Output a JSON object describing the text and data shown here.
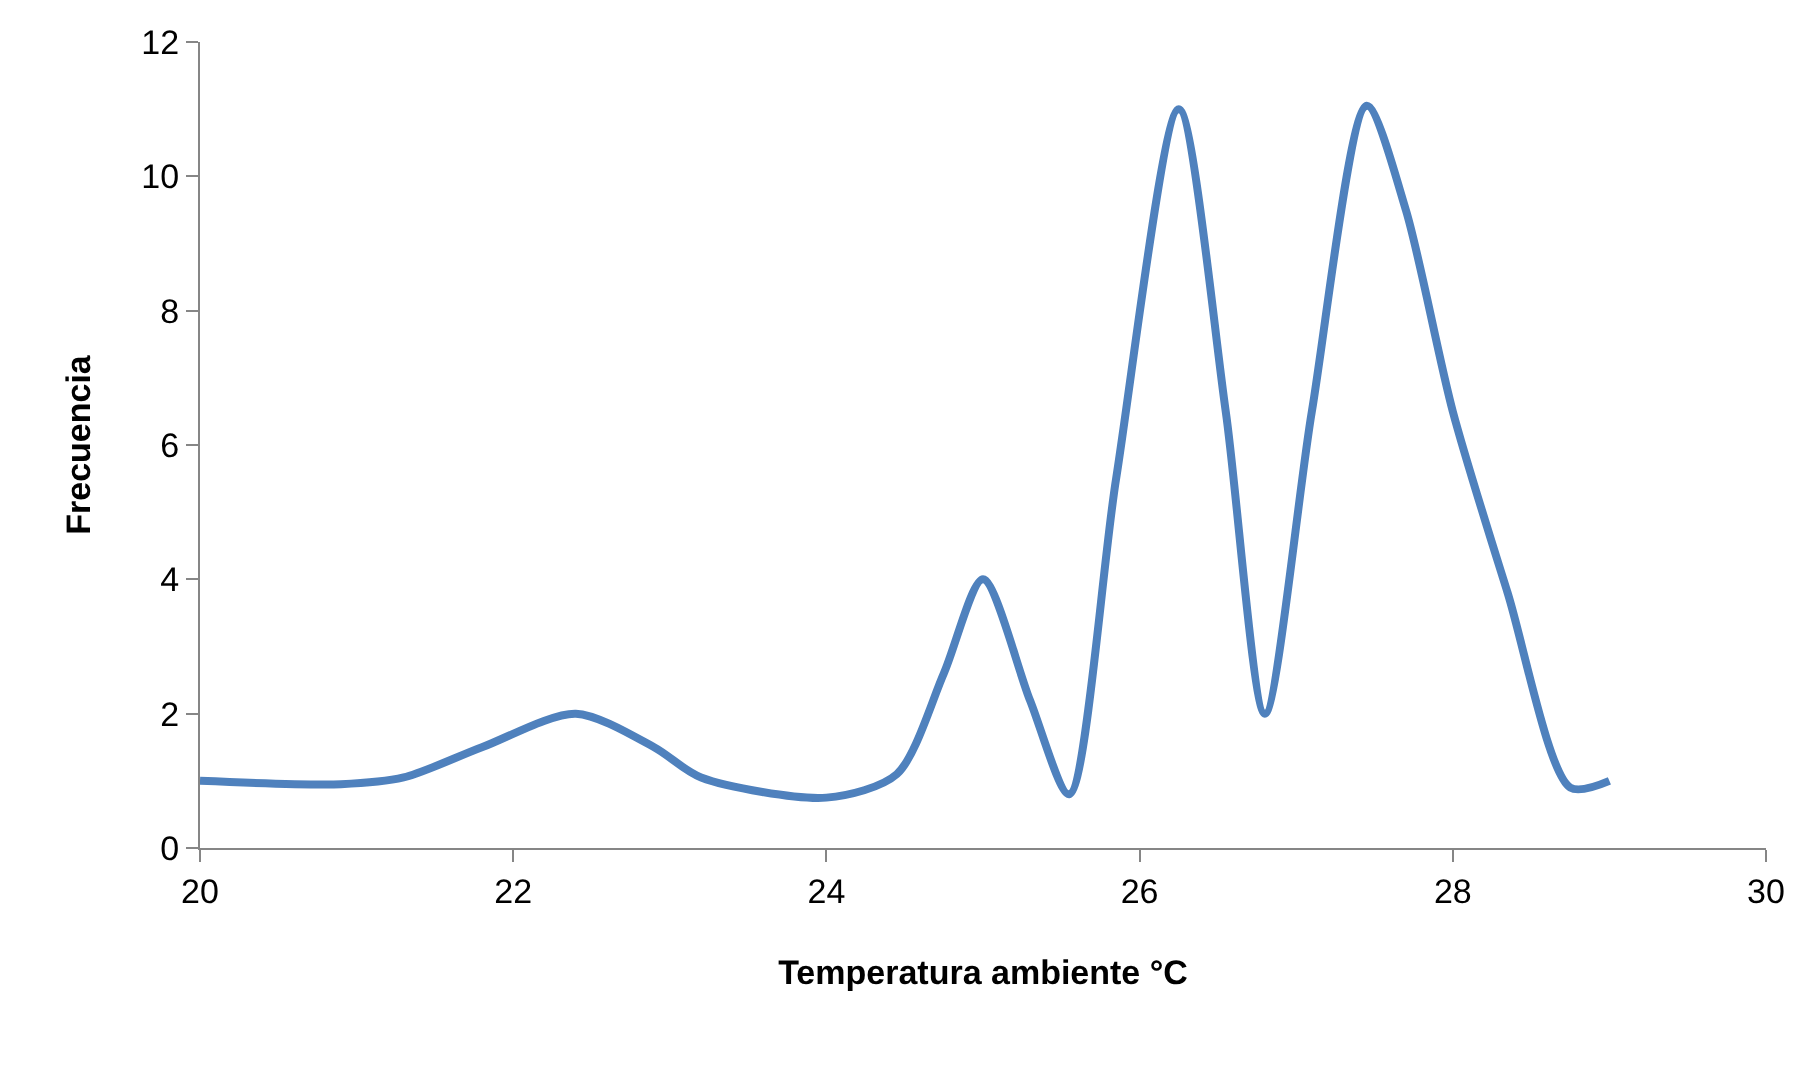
{
  "chart_data": {
    "type": "line",
    "xlabel": "Temperatura ambiente °C",
    "ylabel": "Frecuencia",
    "series": [
      {
        "color": "#4f81bd",
        "x": [
          20,
          20.9,
          21.3,
          21.8,
          22.4,
          22.9,
          23.2,
          24.0,
          24.45,
          24.75,
          25.0,
          25.3,
          25.55,
          25.85,
          26.25,
          26.55,
          26.8,
          27.1,
          27.45,
          27.7,
          28.0,
          28.35,
          28.75,
          29
        ],
        "values": [
          1,
          0.95,
          1.05,
          1.5,
          2,
          1.5,
          1.05,
          0.75,
          1.1,
          2.6,
          4,
          2.2,
          0.8,
          5.5,
          11,
          6.5,
          2,
          6.5,
          11.05,
          9.5,
          6.5,
          3.8,
          0.9,
          1
        ]
      }
    ],
    "xlim": [
      20,
      30
    ],
    "xticks": [
      20,
      22,
      24,
      26,
      28,
      30
    ],
    "ylim": [
      0,
      12
    ],
    "yticks": [
      0,
      2,
      4,
      6,
      8,
      10,
      12
    ],
    "line_style": "solid"
  }
}
